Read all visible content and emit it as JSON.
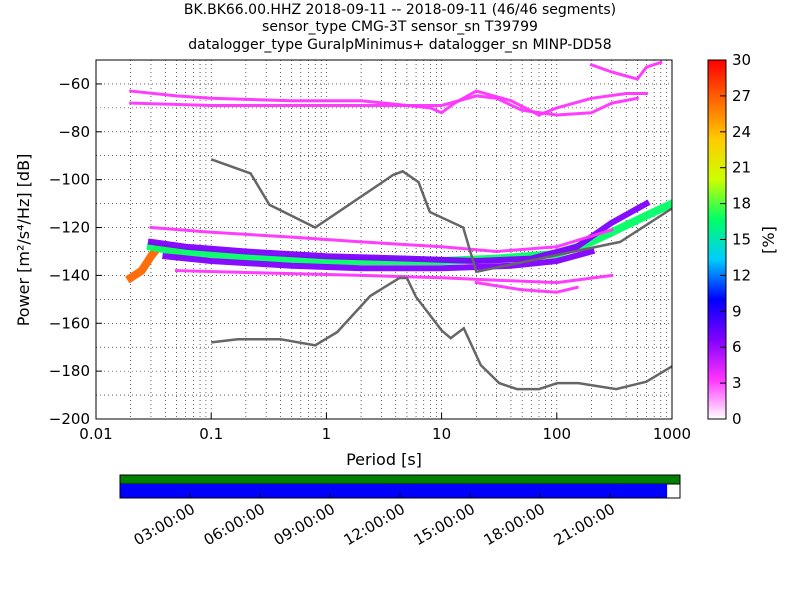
{
  "header": {
    "title_line1": "BK.BK66.00.HHZ   2018-09-11 -- 2018-09-11  (46/46 segments)",
    "title_line2": "sensor_type CMG-3T sensor_sn T39799",
    "title_line3": "datalogger_type GuralpMinimus+ datalogger_sn MINP-DD58"
  },
  "chart_data": {
    "type": "heatmap",
    "description_kind": "probabilistic power spectral density",
    "xlabel": "Period [s]",
    "ylabel": "Power [m²/s⁴/Hz] [dB]",
    "x_scale": "log",
    "xlim": [
      0.01,
      1000
    ],
    "ylim": [
      -200,
      -50
    ],
    "x_ticks": [
      "0.01",
      "0.1",
      "1",
      "10",
      "100",
      "1000"
    ],
    "x_tick_values": [
      0.01,
      0.1,
      1,
      10,
      100,
      1000
    ],
    "y_ticks": [
      "−60",
      "−80",
      "−100",
      "−120",
      "−140",
      "−160",
      "−180",
      "−200"
    ],
    "y_tick_values": [
      -60,
      -80,
      -100,
      -120,
      -140,
      -160,
      -180,
      -200
    ],
    "colorbar": {
      "label": "[%]",
      "range": [
        0,
        30
      ],
      "ticks": [
        "0",
        "3",
        "6",
        "9",
        "12",
        "15",
        "18",
        "21",
        "24",
        "27",
        "30"
      ],
      "colors": [
        "#ffffff",
        "#ff33ff",
        "#8000ff",
        "#0000ff",
        "#00ccff",
        "#00ff66",
        "#ccff00",
        "#ffcc00",
        "#ff6600",
        "#ff0000"
      ]
    },
    "grid": true,
    "noise_models": [
      {
        "name_hidden": "high noise model",
        "points": [
          [
            0.1,
            -91.5
          ],
          [
            0.22,
            -97.4
          ],
          [
            0.32,
            -110.5
          ],
          [
            0.8,
            -120
          ],
          [
            3.8,
            -98
          ],
          [
            4.6,
            -96.5
          ],
          [
            6.3,
            -101
          ],
          [
            7.9,
            -113.5
          ],
          [
            15.4,
            -120
          ],
          [
            20,
            -138.5
          ],
          [
            354.8,
            -126
          ],
          [
            1000,
            -112
          ]
        ]
      },
      {
        "name_hidden": "low noise model",
        "points": [
          [
            0.1,
            -168
          ],
          [
            0.17,
            -166.7
          ],
          [
            0.4,
            -166.7
          ],
          [
            0.8,
            -169.2
          ],
          [
            1.24,
            -163.7
          ],
          [
            2.4,
            -148.6
          ],
          [
            4.3,
            -141.1
          ],
          [
            5,
            -141.1
          ],
          [
            6,
            -149
          ],
          [
            10,
            -163
          ],
          [
            12,
            -166.2
          ],
          [
            15.6,
            -162.1
          ],
          [
            21.9,
            -177.5
          ],
          [
            31.6,
            -185
          ],
          [
            45,
            -187.5
          ],
          [
            70,
            -187.5
          ],
          [
            101,
            -185
          ],
          [
            154,
            -185
          ],
          [
            328,
            -187.5
          ],
          [
            600,
            -184.4
          ],
          [
            1000,
            -178
          ]
        ]
      }
    ],
    "psd_bands": [
      {
        "pct": 25,
        "points": [
          [
            0.02,
            -141
          ],
          [
            0.025,
            -138
          ],
          [
            0.03,
            -132
          ],
          [
            0.035,
            -128
          ],
          [
            0.05,
            -130
          ]
        ]
      },
      {
        "pct": 15,
        "points": [
          [
            0.03,
            -128
          ],
          [
            0.05,
            -130
          ],
          [
            0.1,
            -131
          ],
          [
            0.3,
            -133
          ],
          [
            1,
            -134
          ],
          [
            3,
            -134
          ],
          [
            10,
            -134
          ],
          [
            30,
            -133
          ],
          [
            100,
            -131
          ],
          [
            200,
            -126
          ],
          [
            300,
            -122
          ],
          [
            600,
            -115
          ],
          [
            1000,
            -110
          ]
        ]
      },
      {
        "pct": 8,
        "points": [
          [
            0.03,
            -126
          ],
          [
            0.06,
            -128
          ],
          [
            0.2,
            -130
          ],
          [
            1,
            -132
          ],
          [
            5,
            -133
          ],
          [
            20,
            -134
          ],
          [
            60,
            -133
          ],
          [
            150,
            -128
          ],
          [
            300,
            -118
          ],
          [
            600,
            -110
          ]
        ]
      },
      {
        "pct": 8,
        "points": [
          [
            0.04,
            -132
          ],
          [
            0.1,
            -134
          ],
          [
            0.5,
            -136
          ],
          [
            2,
            -137
          ],
          [
            10,
            -137
          ],
          [
            40,
            -136
          ],
          [
            100,
            -134
          ],
          [
            200,
            -130
          ]
        ]
      },
      {
        "pct": 4,
        "points": [
          [
            0.03,
            -120
          ],
          [
            0.1,
            -122
          ],
          [
            0.5,
            -124
          ],
          [
            2,
            -126
          ],
          [
            10,
            -128
          ],
          [
            30,
            -130
          ],
          [
            100,
            -128
          ],
          [
            300,
            -121
          ]
        ]
      },
      {
        "pct": 4,
        "points": [
          [
            0.05,
            -138
          ],
          [
            0.3,
            -139
          ],
          [
            2,
            -140
          ],
          [
            10,
            -141
          ],
          [
            30,
            -142
          ],
          [
            100,
            -143
          ],
          [
            300,
            -140
          ]
        ]
      },
      {
        "pct": 2,
        "points": [
          [
            20,
            -143
          ],
          [
            50,
            -146
          ],
          [
            100,
            -147
          ],
          [
            150,
            -145
          ]
        ]
      },
      {
        "pct": 2,
        "points": [
          [
            0.02,
            -63
          ],
          [
            0.05,
            -65
          ],
          [
            0.1,
            -66
          ],
          [
            0.5,
            -67
          ],
          [
            2,
            -67
          ],
          [
            8,
            -70
          ],
          [
            10,
            -72
          ],
          [
            13,
            -68
          ],
          [
            20,
            -63
          ],
          [
            40,
            -67
          ],
          [
            70,
            -73
          ],
          [
            100,
            -70
          ],
          [
            200,
            -66
          ],
          [
            400,
            -64
          ],
          [
            600,
            -64
          ]
        ]
      },
      {
        "pct": 2,
        "points": [
          [
            0.02,
            -68
          ],
          [
            0.1,
            -69
          ],
          [
            1,
            -69
          ],
          [
            5,
            -69
          ],
          [
            10,
            -69
          ],
          [
            20,
            -65
          ],
          [
            30,
            -66
          ],
          [
            50,
            -71
          ],
          [
            100,
            -73
          ],
          [
            200,
            -72
          ],
          [
            300,
            -68
          ],
          [
            500,
            -66
          ]
        ]
      },
      {
        "pct": 2,
        "points": [
          [
            200,
            -52
          ],
          [
            300,
            -55
          ],
          [
            500,
            -58
          ],
          [
            600,
            -53
          ],
          [
            800,
            -51
          ]
        ]
      }
    ]
  },
  "coverage_bar": {
    "time_ticks": [
      "03:00:00",
      "06:00:00",
      "09:00:00",
      "12:00:00",
      "15:00:00",
      "18:00:00",
      "21:00:00"
    ],
    "tick_hours": [
      3,
      6,
      9,
      12,
      15,
      18,
      21
    ],
    "span_hours": 24,
    "data_fraction": 0.977,
    "top_color": "#008000",
    "data_color": "#0000ff"
  }
}
